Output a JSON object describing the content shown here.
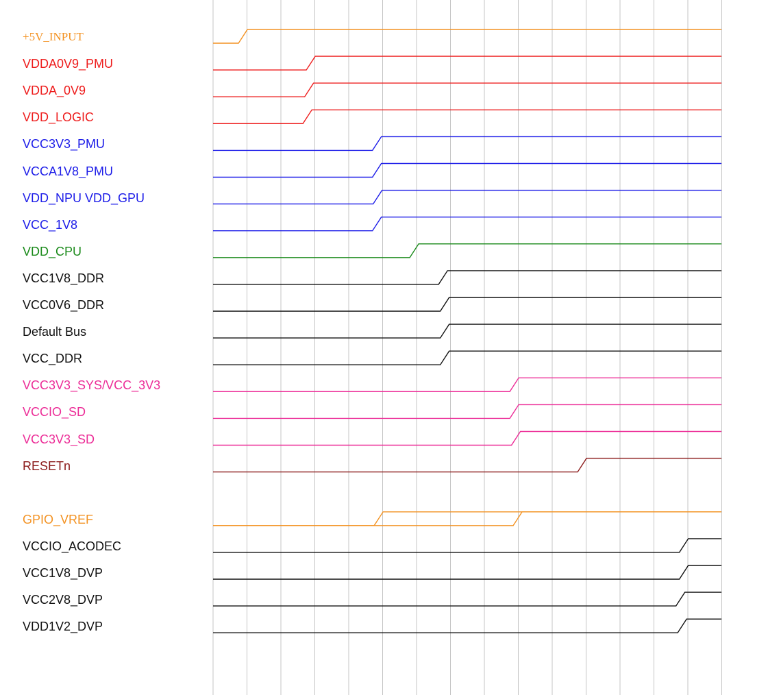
{
  "signals": [
    {
      "name": "+5V_INPUT",
      "color": "#f39222",
      "font": "serif",
      "rise_grid": [
        0.75
      ]
    },
    {
      "name": "VDDA0V9_PMU",
      "color": "#ee1c1c",
      "rise_grid": [
        2.75
      ]
    },
    {
      "name": "VDDA_0V9",
      "color": "#ee1c1c",
      "rise_grid": [
        2.7
      ]
    },
    {
      "name": "VDD_LOGIC",
      "color": "#ee1c1c",
      "rise_grid": [
        2.65
      ]
    },
    {
      "name": "VCC3V3_PMU",
      "color": "#1c1ce8",
      "rise_grid": [
        4.7
      ]
    },
    {
      "name": "VCCA1V8_PMU",
      "color": "#1c1ce8",
      "rise_grid": [
        4.7
      ]
    },
    {
      "name": "VDD_NPU VDD_GPU",
      "color": "#1c1ce8",
      "rise_grid": [
        4.72
      ]
    },
    {
      "name": "VCC_1V8",
      "color": "#1c1ce8",
      "rise_grid": [
        4.7
      ]
    },
    {
      "name": "VDD_CPU",
      "color": "#1a8a1a",
      "rise_grid": [
        5.8
      ]
    },
    {
      "name": "VCC1V8_DDR",
      "color": "#111111",
      "rise_grid": [
        6.65
      ]
    },
    {
      "name": "VCC0V6_DDR",
      "color": "#111111",
      "rise_grid": [
        6.7
      ]
    },
    {
      "name": "Default Bus",
      "color": "#111111",
      "rise_grid": [
        6.7
      ]
    },
    {
      "name": "VCC_DDR",
      "color": "#111111",
      "rise_grid": [
        6.7
      ]
    },
    {
      "name": "VCC3V3_SYS/VCC_3V3",
      "color": "#ec2c97",
      "rise_grid": [
        8.75
      ]
    },
    {
      "name": "VCCIO_SD",
      "color": "#ec2c97",
      "rise_grid": [
        8.75
      ]
    },
    {
      "name": "VCC3V3_SD",
      "color": "#ec2c97",
      "rise_grid": [
        8.8
      ]
    },
    {
      "name": "RESETn",
      "color": "#8b1a1a",
      "rise_grid": [
        10.75
      ]
    },
    {
      "name": "GPIO_VREF",
      "color": "#f39222",
      "rise_grid": [
        4.75,
        8.85
      ]
    },
    {
      "name": "VCCIO_ACODEC",
      "color": "#111111",
      "rise_grid": [
        13.75
      ]
    },
    {
      "name": "VCC1V8_DVP",
      "color": "#111111",
      "rise_grid": [
        13.75
      ]
    },
    {
      "name": "VCC2V8_DVP",
      "color": "#111111",
      "rise_grid": [
        13.65
      ]
    },
    {
      "name": "VDD1V2_DVP",
      "color": "#111111",
      "rise_grid": [
        13.7
      ]
    }
  ],
  "grid_line_count": 16,
  "grid_color": "#c4c4c4"
}
